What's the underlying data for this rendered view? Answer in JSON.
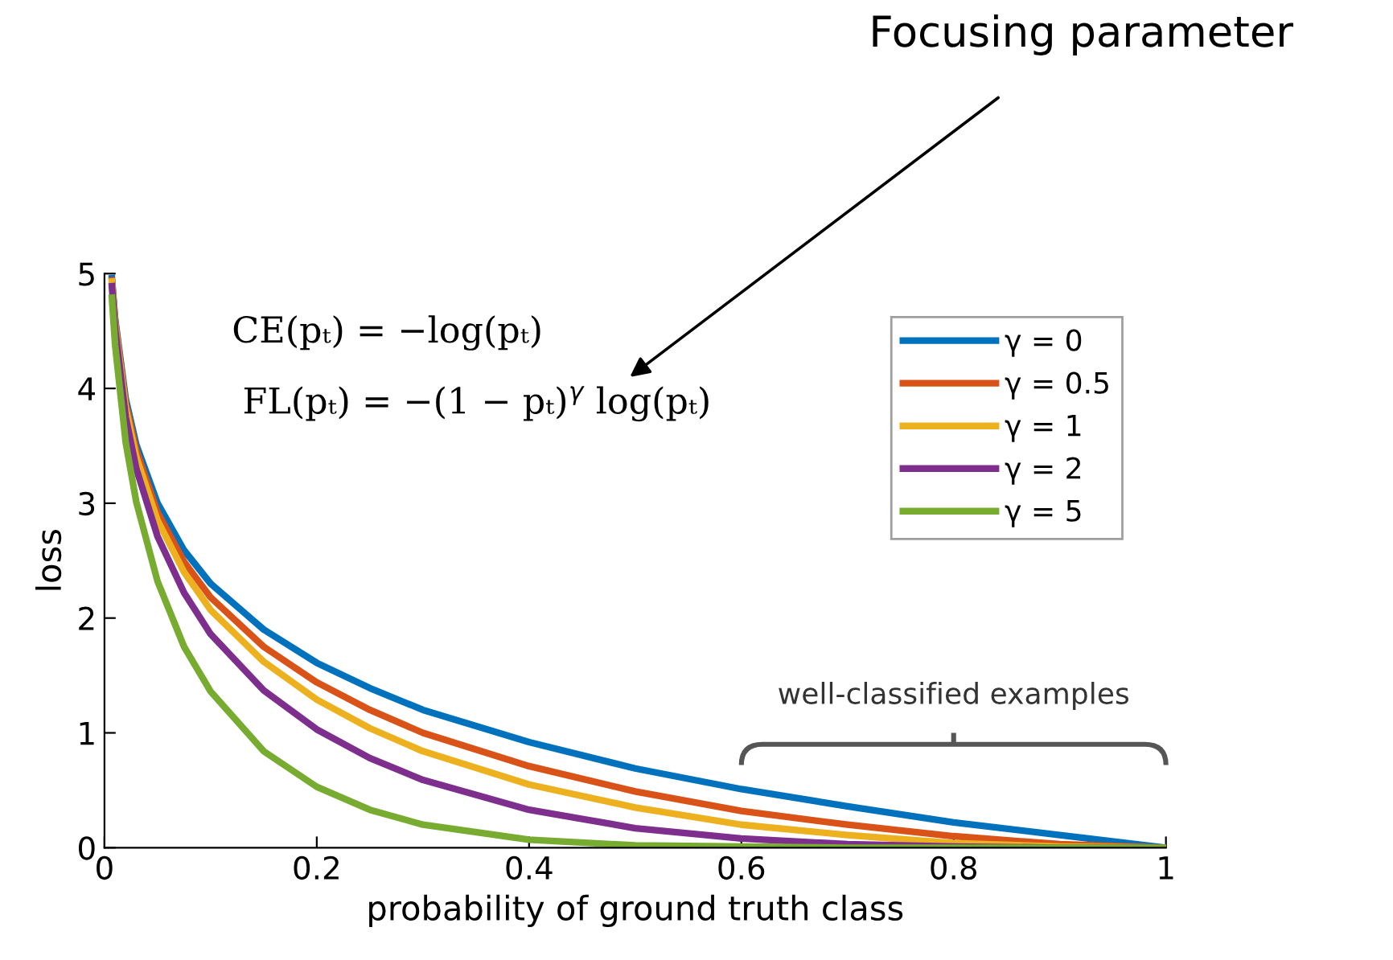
{
  "chart_data": {
    "type": "line",
    "xlabel": "probability of ground truth class",
    "ylabel": "loss",
    "x": [
      0.007,
      0.01,
      0.02,
      0.03,
      0.05,
      0.075,
      0.1,
      0.15,
      0.2,
      0.25,
      0.3,
      0.4,
      0.5,
      0.6,
      0.7,
      0.8,
      0.9,
      1.0
    ],
    "series": [
      {
        "name": "γ = 0",
        "color": "#0072bd",
        "values": [
          4.96,
          4.61,
          3.91,
          3.51,
          3.0,
          2.59,
          2.3,
          1.9,
          1.61,
          1.39,
          1.2,
          0.92,
          0.69,
          0.51,
          0.36,
          0.22,
          0.11,
          0
        ]
      },
      {
        "name": "γ = 0.5",
        "color": "#d95319",
        "values": [
          4.94,
          4.59,
          3.87,
          3.46,
          2.92,
          2.49,
          2.18,
          1.75,
          1.44,
          1.2,
          1.0,
          0.71,
          0.49,
          0.32,
          0.2,
          0.1,
          0.03,
          0
        ]
      },
      {
        "name": "γ = 1",
        "color": "#edb120",
        "values": [
          4.93,
          4.56,
          3.83,
          3.4,
          2.85,
          2.4,
          2.07,
          1.62,
          1.29,
          1.04,
          0.84,
          0.55,
          0.35,
          0.2,
          0.11,
          0.04,
          0.01,
          0
        ]
      },
      {
        "name": "γ = 2",
        "color": "#7e2f8e",
        "values": [
          4.89,
          4.52,
          3.75,
          3.3,
          2.71,
          2.22,
          1.86,
          1.37,
          1.03,
          0.78,
          0.59,
          0.33,
          0.17,
          0.08,
          0.03,
          0.01,
          0,
          0
        ]
      },
      {
        "name": "γ = 5",
        "color": "#77ac30",
        "values": [
          4.79,
          4.38,
          3.53,
          3.01,
          2.32,
          1.75,
          1.36,
          0.84,
          0.53,
          0.33,
          0.2,
          0.07,
          0.02,
          0.01,
          0,
          0,
          0,
          0
        ]
      }
    ],
    "xlim": [
      0,
      1
    ],
    "ylim": [
      0,
      5
    ],
    "xticks": [
      0,
      0.2,
      0.4,
      0.6,
      0.8,
      1
    ],
    "yticks": [
      0,
      1,
      2,
      3,
      4,
      5
    ],
    "grid": false,
    "legend": "top right",
    "marker": "none",
    "line_style": "solid",
    "annotations": [
      "CE(pₜ) = −log(pₜ)",
      "FL(pₜ) = −(1 − pₜ)$^{γ}$ log(pₜ)",
      "Focusing parameter",
      "well-classified examples"
    ]
  }
}
